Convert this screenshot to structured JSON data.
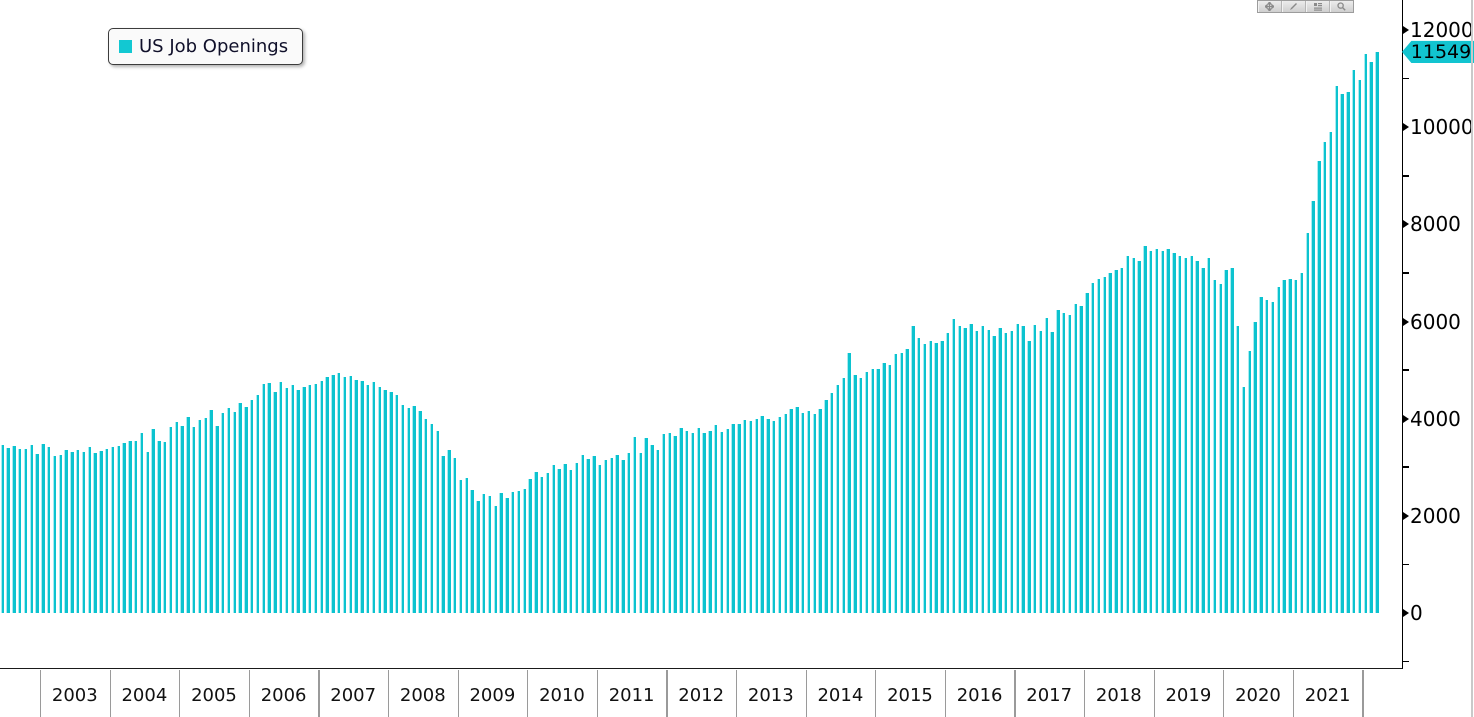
{
  "legend": {
    "label": "US Job Openings",
    "swatch_color": "#12c8d2"
  },
  "toolbar": {
    "icons": [
      "move-icon",
      "draw-icon",
      "annotate-icon",
      "magnifier-icon"
    ]
  },
  "y_axis": {
    "side": "right",
    "major_tick_labels": [
      "0",
      "2000",
      "4000",
      "6000",
      "8000",
      "10000",
      "12000"
    ],
    "minor_ticks": [
      -1000,
      1000,
      3000,
      5000,
      7000,
      9000,
      11000
    ],
    "last_value_label": "11549",
    "last_value_tag_color": "#12c4d0"
  },
  "x_axis": {
    "year_labels": [
      "2003",
      "2004",
      "2005",
      "2006",
      "2007",
      "2008",
      "2009",
      "2010",
      "2011",
      "2012",
      "2013",
      "2014",
      "2015",
      "2016",
      "2017",
      "2018",
      "2019",
      "2020",
      "2021"
    ]
  },
  "chart_data": {
    "type": "bar",
    "title": "",
    "series_name": "US Job Openings",
    "frequency": "monthly",
    "x_start": "2002-06",
    "x_end": "2022-03",
    "bar_color": "#0cc3cf",
    "ylim": [
      -1150,
      12600
    ],
    "y_major_ticks": [
      0,
      2000,
      4000,
      6000,
      8000,
      10000,
      12000
    ],
    "grid": false,
    "legend_position": "top-left",
    "last_value": 11549,
    "values_by_year": [
      {
        "year": "2002",
        "months": "Jun-Dec",
        "values": [
          3460,
          3390,
          3440,
          3380,
          3370,
          3460,
          3270
        ]
      },
      {
        "year": "2003",
        "values": [
          3480,
          3420,
          3240,
          3250,
          3360,
          3310,
          3350,
          3320,
          3410,
          3290,
          3330,
          3375
        ]
      },
      {
        "year": "2004",
        "values": [
          3415,
          3435,
          3500,
          3540,
          3540,
          3710,
          3315,
          3790,
          3540,
          3520,
          3830,
          3930
        ]
      },
      {
        "year": "2005",
        "values": [
          3850,
          4040,
          3830,
          3970,
          4010,
          4175,
          3840,
          4110,
          4210,
          4140,
          4330,
          4240
        ]
      },
      {
        "year": "2006",
        "values": [
          4380,
          4490,
          4710,
          4740,
          4550,
          4760,
          4640,
          4700,
          4580,
          4650,
          4700,
          4720
        ]
      },
      {
        "year": "2007",
        "values": [
          4780,
          4850,
          4900,
          4940,
          4850,
          4880,
          4800,
          4770,
          4700,
          4750,
          4660,
          4600
        ]
      },
      {
        "year": "2008",
        "values": [
          4550,
          4480,
          4280,
          4220,
          4270,
          4150,
          4000,
          3900,
          3750,
          3230,
          3355,
          3190
        ]
      },
      {
        "year": "2009",
        "values": [
          2740,
          2780,
          2530,
          2300,
          2450,
          2400,
          2200,
          2470,
          2370,
          2490,
          2510,
          2550
        ]
      },
      {
        "year": "2010",
        "values": [
          2750,
          2900,
          2800,
          2880,
          3050,
          2960,
          3070,
          2950,
          3090,
          3250,
          3170,
          3230
        ]
      },
      {
        "year": "2011",
        "values": [
          3050,
          3150,
          3200,
          3250,
          3150,
          3300,
          3620,
          3290,
          3600,
          3450,
          3350,
          3680
        ]
      },
      {
        "year": "2012",
        "values": [
          3700,
          3650,
          3800,
          3750,
          3700,
          3800,
          3700,
          3750,
          3870,
          3720,
          3780,
          3900
        ]
      },
      {
        "year": "2013",
        "values": [
          3900,
          3980,
          3950,
          4000,
          4050,
          4000,
          3950,
          4030,
          4100,
          4200,
          4230,
          4120
        ]
      },
      {
        "year": "2014",
        "values": [
          4150,
          4100,
          4200,
          4380,
          4520,
          4700,
          4830,
          5360,
          4900,
          4830,
          4970,
          5030
        ]
      },
      {
        "year": "2015",
        "values": [
          5030,
          5140,
          5110,
          5330,
          5360,
          5430,
          5900,
          5670,
          5530,
          5590,
          5550,
          5600
        ]
      },
      {
        "year": "2016",
        "values": [
          5770,
          6050,
          5900,
          5870,
          5950,
          5800,
          5900,
          5820,
          5700,
          5860,
          5760,
          5800
        ]
      },
      {
        "year": "2017",
        "values": [
          5950,
          5900,
          5600,
          5930,
          5800,
          6080,
          5790,
          6230,
          6170,
          6140,
          6350,
          6320
        ]
      },
      {
        "year": "2018",
        "values": [
          6580,
          6790,
          6870,
          6920,
          7000,
          7060,
          7100,
          7350,
          7300,
          7250,
          7550,
          7450
        ]
      },
      {
        "year": "2019",
        "values": [
          7500,
          7450,
          7500,
          7400,
          7350,
          7300,
          7350,
          7250,
          7100,
          7300,
          6850,
          6770
        ]
      },
      {
        "year": "2020",
        "values": [
          7050,
          7100,
          5900,
          4650,
          5400,
          6000,
          6500,
          6450,
          6400,
          6700,
          6850,
          6870
        ]
      },
      {
        "year": "2021",
        "values": [
          6850,
          7000,
          7830,
          8470,
          9300,
          9700,
          9900,
          10850,
          10680,
          10720,
          11170,
          10970
        ]
      },
      {
        "year": "2022",
        "months": "Jan-Mar",
        "values": [
          11500,
          11340,
          11549
        ]
      }
    ]
  }
}
